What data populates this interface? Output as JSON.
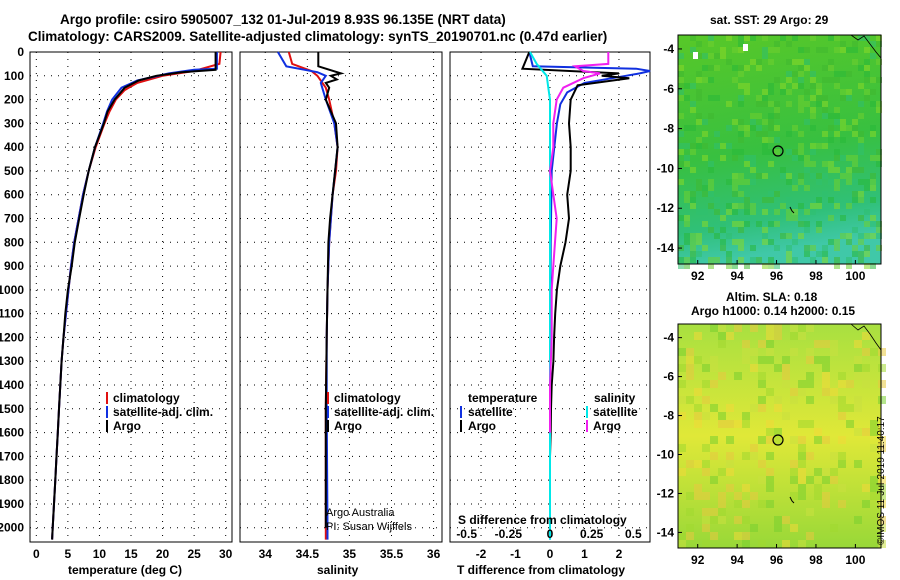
{
  "title": "Argo profile: csiro 5905007_132 01-Jul-2019 8.93S 96.135E (NRT data)",
  "subtitle": "Climatology: CARS2009. Satellite-adjusted climatology: synTS_20190701.nc (0.47d earlier)",
  "footer": "©IMOS 11-Jul-2019 11:40:17",
  "colors": {
    "climatology": "#e01010",
    "satellite": "#1030e0",
    "argo": "#000000",
    "cyan": "#00e8e8",
    "magenta": "#f020f0"
  },
  "chart_data": [
    {
      "type": "line",
      "name": "temperature",
      "xlabel": "temperature (deg C)",
      "xlim": [
        -1,
        31
      ],
      "xticks": [
        "0",
        "5",
        "10",
        "15",
        "20",
        "25",
        "30"
      ],
      "ylim": [
        2060,
        0
      ],
      "yticks": [
        "0",
        "100",
        "200",
        "300",
        "400",
        "500",
        "600",
        "700",
        "800",
        "900",
        "1000",
        "1100",
        "1200",
        "1300",
        "1400",
        "1500",
        "1600",
        "1700",
        "1800",
        "1900",
        "2000"
      ],
      "legend": [
        "climatology",
        "satellite-adj. clim.",
        "Argo"
      ],
      "series": [
        {
          "name": "climatology",
          "color": "climatology",
          "depth": [
            0,
            50,
            80,
            100,
            130,
            160,
            200,
            250,
            300,
            400,
            500,
            600,
            700,
            800,
            900,
            1000,
            1100,
            1200,
            1300,
            1400,
            1500,
            1600,
            1700,
            1800,
            1900,
            2000,
            2050
          ],
          "values": [
            29.2,
            29.0,
            25,
            20,
            16,
            14,
            12.6,
            11.6,
            10.8,
            9.4,
            8.3,
            7.4,
            6.7,
            6.0,
            5.5,
            5.1,
            4.7,
            4.3,
            4.0,
            3.8,
            3.6,
            3.4,
            3.2,
            3.0,
            2.8,
            2.6,
            2.5
          ]
        },
        {
          "name": "satellite-adj. clim.",
          "color": "satellite",
          "depth": [
            0,
            70,
            75,
            90,
            120,
            150,
            200,
            250,
            300,
            400,
            500,
            600,
            700,
            800,
            900,
            1000,
            1100,
            1200,
            1300,
            1400,
            1500,
            1600,
            1700,
            1800,
            1900,
            2000,
            2050
          ],
          "values": [
            28.6,
            28.6,
            25,
            21,
            16,
            13.5,
            12,
            11.2,
            10.6,
            9.3,
            8.3,
            7.4,
            6.7,
            6.0,
            5.5,
            5.1,
            4.7,
            4.3,
            4.0,
            3.8,
            3.6,
            3.4,
            3.2,
            3.0,
            2.8,
            2.6,
            2.5
          ]
        },
        {
          "name": "Argo",
          "color": "argo",
          "depth": [
            0,
            75,
            85,
            100,
            120,
            150,
            200,
            250,
            300,
            400,
            500,
            600,
            700,
            800,
            900,
            1000,
            1100,
            1200,
            1300,
            1400,
            1500,
            1600,
            1700,
            1800,
            1900,
            2000,
            2050
          ],
          "values": [
            28.4,
            28.4,
            23,
            19,
            16.2,
            14,
            12.4,
            11.3,
            10.7,
            9.3,
            8.3,
            7.5,
            6.8,
            6.1,
            5.6,
            5.0,
            4.6,
            4.3,
            4.0,
            3.8,
            3.6,
            3.4,
            3.2,
            3.0,
            2.8,
            2.6,
            2.5
          ]
        }
      ]
    },
    {
      "type": "line",
      "name": "salinity",
      "xlabel": "salinity",
      "xlim": [
        33.7,
        36.1
      ],
      "xticks": [
        "34",
        "34.5",
        "35",
        "35.5",
        "36"
      ],
      "ylim": [
        2060,
        0
      ],
      "legend": [
        "climatology",
        "satellite-adj. clim.",
        "Argo"
      ],
      "annotations": [
        "Argo Australia",
        "PI: Susan Wijffels"
      ],
      "series": [
        {
          "name": "climatology",
          "color": "climatology",
          "depth": [
            0,
            50,
            80,
            100,
            150,
            200,
            300,
            400,
            500,
            600,
            700,
            800,
            1000,
            1200,
            1500,
            2000,
            2050
          ],
          "values": [
            34.28,
            34.32,
            34.55,
            34.62,
            34.72,
            34.76,
            34.82,
            34.86,
            34.84,
            34.8,
            34.78,
            34.76,
            34.74,
            34.73,
            34.72,
            34.72,
            34.72
          ]
        },
        {
          "name": "satellite-adj. clim.",
          "color": "satellite",
          "depth": [
            0,
            60,
            85,
            100,
            130,
            200,
            300,
            400,
            500,
            600,
            700,
            800,
            1000,
            1200,
            1500,
            2000,
            2050
          ],
          "values": [
            34.15,
            34.25,
            34.62,
            34.72,
            34.66,
            34.72,
            34.82,
            34.86,
            34.83,
            34.8,
            34.78,
            34.76,
            34.74,
            34.73,
            34.73,
            34.74,
            34.74
          ]
        },
        {
          "name": "Argo",
          "color": "argo",
          "depth": [
            0,
            60,
            90,
            100,
            115,
            130,
            150,
            200,
            300,
            400,
            500,
            600,
            700,
            800,
            1000,
            1200,
            1500,
            1600,
            2000
          ],
          "values": [
            34.63,
            34.63,
            34.9,
            34.78,
            34.85,
            34.72,
            34.76,
            34.72,
            34.84,
            34.86,
            34.83,
            34.8,
            34.77,
            34.75,
            34.74,
            34.73,
            34.72,
            34.72,
            34.72
          ]
        }
      ]
    },
    {
      "type": "line",
      "name": "difference",
      "xlabel": "T difference from climatology",
      "xlabel_top": "S difference from climatology",
      "xlim": [
        -2.9,
        2.9
      ],
      "xticks": [
        "-2",
        "-1",
        "0",
        "1",
        "2"
      ],
      "xticks_top": [
        "-0.5",
        "-0.25",
        "0",
        "0.25",
        "0.5"
      ],
      "ylim": [
        2060,
        0
      ],
      "legend_left": {
        "header": "temperature",
        "items": [
          "satellite",
          "Argo"
        ]
      },
      "legend_right": {
        "header": "salinity",
        "items": [
          "satellite",
          "Argo"
        ]
      },
      "series": [
        {
          "name": "temperature satellite",
          "color": "satellite",
          "depth": [
            0,
            60,
            70,
            80,
            90,
            100,
            130,
            170,
            220,
            300,
            500,
            800,
            1200,
            1600,
            2050
          ],
          "values": [
            -0.6,
            -0.5,
            2.5,
            3.0,
            2.6,
            2.2,
            1.0,
            0.5,
            0.3,
            0.2,
            0.05,
            0.02,
            0.01,
            0,
            0
          ]
        },
        {
          "name": "temperature Argo",
          "color": "argo",
          "depth": [
            0,
            70,
            90,
            100,
            110,
            140,
            200,
            300,
            400,
            500,
            600,
            700,
            800,
            900,
            1000,
            1100,
            1200,
            1300,
            1400,
            1500,
            1600,
            1700
          ],
          "values": [
            -0.6,
            -0.8,
            2.0,
            1.5,
            2.3,
            0.8,
            0.6,
            0.55,
            0.6,
            0.6,
            0.5,
            0.55,
            0.45,
            0.3,
            0.2,
            0.15,
            0.12,
            0.1,
            0.05,
            0.03,
            0.02,
            0.0
          ]
        },
        {
          "name": "salinity satellite",
          "color": "cyan",
          "depth": [
            0,
            50,
            100,
            150,
            200,
            300,
            500,
            800,
            1200,
            1600,
            2050
          ],
          "values": [
            -0.12,
            -0.08,
            -0.02,
            -0.01,
            0.0,
            0.0,
            0.0,
            0.0,
            0.0,
            0.0,
            0.0
          ]
        },
        {
          "name": "salinity Argo",
          "color": "magenta",
          "depth": [
            0,
            50,
            60,
            80,
            90,
            110,
            150,
            200,
            300,
            400,
            500,
            700,
            900,
            1000,
            1200,
            1400,
            1500,
            1600
          ],
          "values": [
            0.35,
            0.35,
            0.15,
            0.2,
            0.3,
            0.2,
            0.08,
            0.04,
            0.02,
            0.02,
            0.0,
            0.04,
            0.02,
            0.01,
            0.01,
            0.0,
            0.0,
            0.0
          ]
        }
      ]
    },
    {
      "type": "heatmap",
      "name": "sst-map",
      "title": "sat. SST: 29 Argo: 29",
      "xticks": [
        "92",
        "94",
        "96",
        "98",
        "100"
      ],
      "yticks": [
        "-4",
        "-6",
        "-8",
        "-10",
        "-12",
        "-14"
      ],
      "xlim": [
        91,
        101.3
      ],
      "ylim": [
        -14.8,
        -3.3
      ],
      "marker": {
        "lon": 96.135,
        "lat": -8.93
      }
    },
    {
      "type": "heatmap",
      "name": "sla-map",
      "title": "Altim. SLA: 0.18",
      "subtitle": "Argo h1000: 0.14 h2000: 0.15",
      "xticks": [
        "92",
        "94",
        "96",
        "98",
        "100"
      ],
      "yticks": [
        "-4",
        "-6",
        "-8",
        "-10",
        "-12",
        "-14"
      ],
      "xlim": [
        91,
        101.3
      ],
      "ylim": [
        -14.8,
        -3.3
      ],
      "marker": {
        "lon": 96.135,
        "lat": -8.93
      }
    }
  ]
}
